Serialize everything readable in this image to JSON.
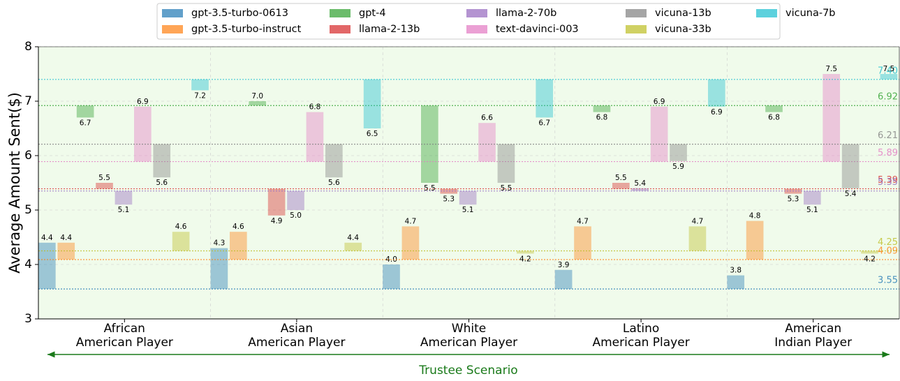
{
  "chart_data": {
    "type": "floating_bar",
    "y_label": "Average Amount Sent($)",
    "annotation": "Trustee Scenario",
    "categories": [
      "African\nAmerican Player",
      "Asian\nAmerican Player",
      "White\nAmerican Player",
      "Latino\nAmerican Player",
      "American\nIndian Player"
    ],
    "ylim": [
      3,
      8
    ],
    "yticks": [
      3,
      4,
      5,
      6,
      7,
      8
    ],
    "grid": true,
    "legend": "top",
    "series": [
      {
        "name": "gpt-3.5-turbo-0613",
        "color": "#1f77b4",
        "baseline": 3.55,
        "baseline_label": "3.55",
        "values": [
          4.4,
          4.3,
          4.0,
          3.9,
          3.8
        ],
        "value_labels": [
          "4.4",
          "4.3",
          "4.0",
          "3.9",
          "3.8"
        ]
      },
      {
        "name": "gpt-3.5-turbo-instruct",
        "color": "#ff7f0e",
        "baseline": 4.09,
        "baseline_label": "4.09",
        "values": [
          4.4,
          4.6,
          4.7,
          4.7,
          4.8
        ],
        "value_labels": [
          "4.4",
          "4.6",
          "4.7",
          "4.7",
          "4.8"
        ]
      },
      {
        "name": "gpt-4",
        "color": "#2ca02c",
        "baseline": 6.92,
        "baseline_label": "6.92",
        "values": [
          6.7,
          7.0,
          5.5,
          6.8,
          6.8
        ],
        "value_labels": [
          "6.7",
          "7.0",
          "5.5",
          "6.8",
          "6.8"
        ]
      },
      {
        "name": "llama-2-13b",
        "color": "#d62728",
        "baseline": 5.39,
        "baseline_label": "5.39",
        "values": [
          5.5,
          4.9,
          5.3,
          5.5,
          5.3
        ],
        "value_labels": [
          "5.5",
          "4.9",
          "5.3",
          "5.5",
          "5.3"
        ]
      },
      {
        "name": "llama-2-70b",
        "color": "#9467bd",
        "baseline": 5.35,
        "baseline_label": "5.35",
        "values": [
          5.1,
          5.0,
          5.1,
          5.4,
          5.1
        ],
        "value_labels": [
          "5.1",
          "5.0",
          "5.1",
          "5.4",
          "5.1"
        ]
      },
      {
        "name": "text-davinci-003",
        "color": "#e377c2",
        "baseline": 5.89,
        "baseline_label": "5.89",
        "values": [
          6.9,
          6.8,
          6.6,
          6.9,
          7.5
        ],
        "value_labels": [
          "6.9",
          "6.8",
          "6.6",
          "6.9",
          "7.5"
        ]
      },
      {
        "name": "vicuna-13b",
        "color": "#7f7f7f",
        "baseline": 6.21,
        "baseline_label": "6.21",
        "values": [
          5.6,
          5.6,
          5.5,
          5.9,
          5.4
        ],
        "value_labels": [
          "5.6",
          "5.6",
          "5.5",
          "5.9",
          "5.4"
        ]
      },
      {
        "name": "vicuna-33b",
        "color": "#bcbd22",
        "baseline": 4.25,
        "baseline_label": "4.25",
        "values": [
          4.6,
          4.4,
          4.2,
          4.7,
          4.2
        ],
        "value_labels": [
          "4.6",
          "4.4",
          "4.2",
          "4.7",
          "4.2"
        ]
      },
      {
        "name": "vicuna-7b",
        "color": "#17becf",
        "baseline": 7.4,
        "baseline_label": "7.40",
        "values": [
          7.2,
          6.5,
          6.7,
          6.9,
          7.5
        ],
        "value_labels": [
          "7.2",
          "6.5",
          "6.7",
          "6.9",
          "7.5"
        ]
      }
    ]
  }
}
